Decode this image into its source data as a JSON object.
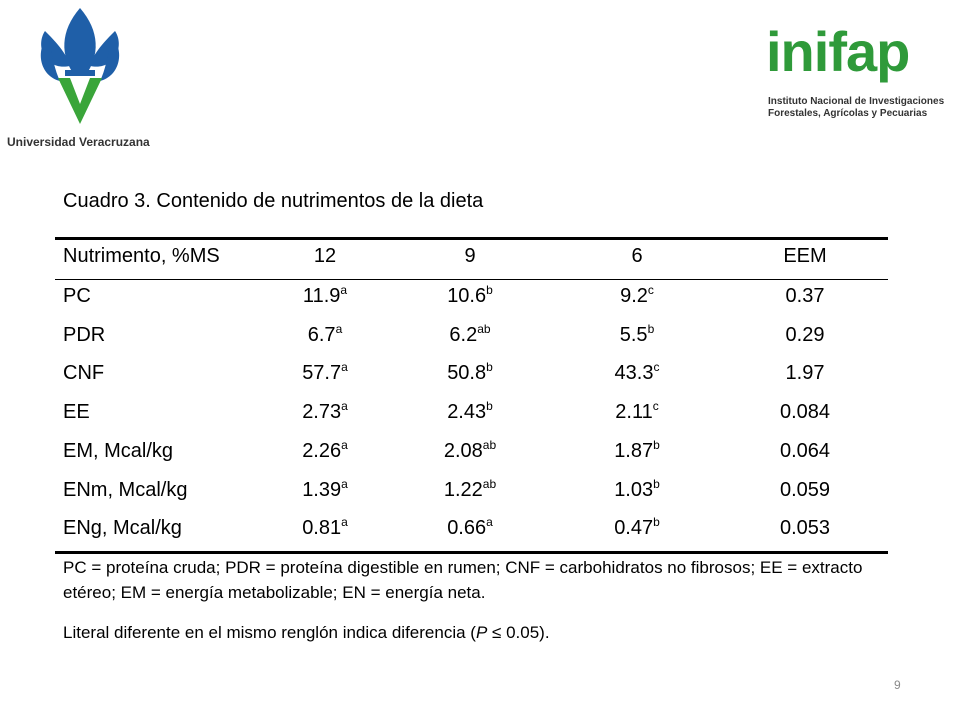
{
  "header": {
    "left_logo_text": "Universidad Veracruzana",
    "right_logo_text": "inifap",
    "right_logo_subtitle": [
      "Instituto Nacional de Investigaciones",
      "Forestales, Agrícolas y Pecuarias"
    ]
  },
  "table": {
    "title": "Cuadro 3. Contenido de nutrimentos de la dieta",
    "columns": [
      "Nutrimento, %MS",
      "12",
      "9",
      "6",
      "EEM"
    ],
    "rows": [
      [
        "PC",
        {
          "text": "11.9",
          "sup": "a"
        },
        {
          "text": "10.6",
          "sup": "b"
        },
        {
          "text": "9.2",
          "sup": "c"
        },
        "0.37"
      ],
      [
        "PDR",
        {
          "text": "6.7",
          "sup": "a"
        },
        {
          "text": "6.2",
          "sup": "ab"
        },
        {
          "text": "5.5",
          "sup": "b"
        },
        "0.29"
      ],
      [
        "CNF",
        {
          "text": "57.7",
          "sup": "a"
        },
        {
          "text": "50.8",
          "sup": "b"
        },
        {
          "text": "43.3",
          "sup": "c"
        },
        "1.97"
      ],
      [
        "EE",
        {
          "text": "2.73",
          "sup": "a"
        },
        {
          "text": "2.43",
          "sup": "b"
        },
        {
          "text": "2.11",
          "sup": "c"
        },
        "0.084"
      ],
      [
        "EM, Mcal/kg",
        {
          "text": "2.26",
          "sup": "a"
        },
        {
          "text": "2.08",
          "sup": "ab"
        },
        {
          "text": "1.87",
          "sup": "b"
        },
        "0.064"
      ],
      [
        "ENm, Mcal/kg",
        {
          "text": "1.39",
          "sup": "a"
        },
        {
          "text": "1.22",
          "sup": "ab"
        },
        {
          "text": "1.03",
          "sup": "b"
        },
        "0.059"
      ],
      [
        "ENg, Mcal/kg",
        {
          "text": "0.81",
          "sup": "a"
        },
        {
          "text": "0.66",
          "sup": "a"
        },
        {
          "text": "0.47",
          "sup": "b"
        },
        "0.053"
      ]
    ],
    "footnote": "PC = proteína cruda; PDR = proteína digestible en rumen; CNF = carbohidratos no fibrosos; EE = extracto etéreo; EM = energía metabolizable; EN = energía neta.",
    "note": [
      "Literal diferente en el mismo renglón indica diferencia (",
      "P",
      " ≤ 0.05)."
    ]
  },
  "page_number": "9"
}
